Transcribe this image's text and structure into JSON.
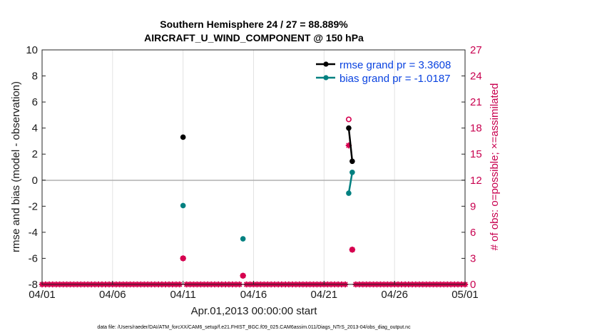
{
  "chart_data": {
    "type": "line",
    "title": "Southern Hemisphere 24 / 27 = 88.889%",
    "subtitle": "AIRCRAFT_U_WIND_COMPONENT @ 150 hPa",
    "xlabel": "Apr.01,2013 00:00:00 start",
    "ylabel": "rmse and bias (model - observation)",
    "ylabel_right": "# of obs: o=possible; ×=assimilated",
    "xlim": [
      0,
      30
    ],
    "ylim": [
      -8,
      10
    ],
    "ylim_right": [
      0,
      27
    ],
    "x_ticks": [
      0,
      5,
      10,
      15,
      20,
      25,
      30
    ],
    "x_tick_labels": [
      "04/01",
      "04/06",
      "04/11",
      "04/16",
      "04/21",
      "04/26",
      "05/01"
    ],
    "y_ticks": [
      -8,
      -6,
      -4,
      -2,
      0,
      2,
      4,
      6,
      8,
      10
    ],
    "y_ticks_right": [
      0,
      3,
      6,
      9,
      12,
      15,
      18,
      21,
      24,
      27
    ],
    "grid": true,
    "legend_position": "top-right",
    "colors": {
      "rmse": "#000000",
      "bias": "#008080",
      "obs": "#d6004f",
      "zero_line": "#b0b0b0"
    },
    "series": [
      {
        "name": "rmse grand pr = 3.3608",
        "marker": "filled-circle",
        "x": [
          10.0,
          21.75,
          22.0
        ],
        "y": [
          3.3,
          4.0,
          1.45
        ],
        "segments": [
          [
            0
          ],
          [
            1,
            2
          ]
        ]
      },
      {
        "name": "bias grand pr = -1.0187",
        "marker": "filled-circle",
        "x": [
          10.0,
          14.25,
          21.75,
          22.0
        ],
        "y": [
          -1.95,
          -4.5,
          -1.0,
          0.6
        ],
        "segments": [
          [
            0
          ],
          [
            1
          ],
          [
            2,
            3
          ]
        ]
      },
      {
        "marker": "open-circle",
        "axis": "right",
        "x": [
          10.0,
          14.25,
          21.75,
          22.0
        ],
        "y": [
          3,
          1,
          19,
          4
        ]
      },
      {
        "marker": "asterisk",
        "axis": "right",
        "x": [
          0.0,
          0.25,
          0.5,
          0.75,
          1.0,
          1.25,
          1.5,
          1.75,
          2.0,
          2.25,
          2.5,
          2.75,
          3.0,
          3.25,
          3.5,
          3.75,
          4.0,
          4.25,
          4.5,
          4.75,
          5.0,
          5.25,
          5.5,
          5.75,
          6.0,
          6.25,
          6.5,
          6.75,
          7.0,
          7.25,
          7.5,
          7.75,
          8.0,
          8.25,
          8.5,
          8.75,
          9.0,
          9.25,
          9.5,
          9.75,
          10.0,
          10.25,
          10.5,
          10.75,
          11.0,
          11.25,
          11.5,
          11.75,
          12.0,
          12.25,
          12.5,
          12.75,
          13.0,
          13.25,
          13.5,
          13.75,
          14.0,
          14.25,
          14.5,
          14.75,
          15.0,
          15.25,
          15.5,
          15.75,
          16.0,
          16.25,
          16.5,
          16.75,
          17.0,
          17.25,
          17.5,
          17.75,
          18.0,
          18.25,
          18.5,
          18.75,
          19.0,
          19.25,
          19.5,
          19.75,
          20.0,
          20.25,
          20.5,
          20.75,
          21.0,
          21.25,
          21.5,
          21.75,
          22.0,
          22.25,
          22.5,
          22.75,
          23.0,
          23.25,
          23.5,
          23.75,
          24.0,
          24.25,
          24.5,
          24.75,
          25.0,
          25.25,
          25.5,
          25.75,
          26.0,
          26.25,
          26.5,
          26.75,
          27.0,
          27.25,
          27.5,
          27.75,
          28.0,
          28.25,
          28.5,
          28.75,
          29.0,
          29.25,
          29.5,
          29.75,
          30.0
        ],
        "y": [
          0,
          0,
          0,
          0,
          0,
          0,
          0,
          0,
          0,
          0,
          0,
          0,
          0,
          0,
          0,
          0,
          0,
          0,
          0,
          0,
          0,
          0,
          0,
          0,
          0,
          0,
          0,
          0,
          0,
          0,
          0,
          0,
          0,
          0,
          0,
          0,
          0,
          0,
          0,
          0,
          3,
          0,
          0,
          0,
          0,
          0,
          0,
          0,
          0,
          0,
          0,
          0,
          0,
          0,
          0,
          0,
          0,
          1,
          0,
          0,
          0,
          0,
          0,
          0,
          0,
          0,
          0,
          0,
          0,
          0,
          0,
          0,
          0,
          0,
          0,
          0,
          0,
          0,
          0,
          0,
          0,
          0,
          0,
          0,
          0,
          0,
          0,
          16,
          4,
          0,
          0,
          0,
          0,
          0,
          0,
          0,
          0,
          0,
          0,
          0,
          0,
          0,
          0,
          0,
          0,
          0,
          0,
          0,
          0,
          0,
          0,
          0,
          0,
          0,
          0,
          0,
          0,
          0,
          0,
          0,
          0
        ]
      }
    ]
  },
  "footer": "data file: /Users/raeder/DAI/ATM_forcXX/CAM6_setup/f.e21.FHIST_BGC.f09_025.CAM6assim.011/Diags_NTrS_2013-04/obs_diag_output.nc"
}
